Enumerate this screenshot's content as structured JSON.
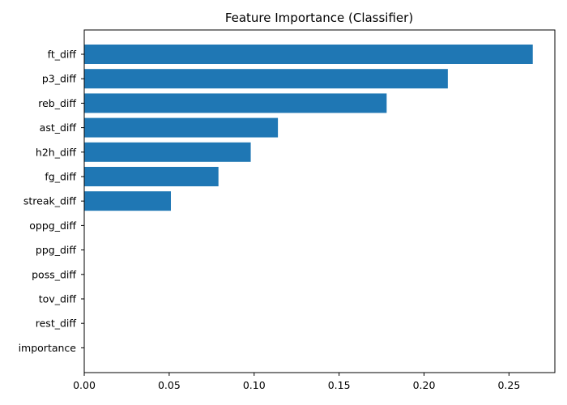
{
  "chart_data": {
    "type": "bar",
    "orientation": "horizontal",
    "title": "Feature Importance (Classifier)",
    "xlabel": "",
    "ylabel": "",
    "categories": [
      "ft_diff",
      "p3_diff",
      "reb_diff",
      "ast_diff",
      "h2h_diff",
      "fg_diff",
      "streak_diff",
      "oppg_diff",
      "ppg_diff",
      "poss_diff",
      "tov_diff",
      "rest_diff",
      "importance"
    ],
    "values": [
      0.264,
      0.214,
      0.178,
      0.114,
      0.098,
      0.079,
      0.051,
      0,
      0,
      0,
      0,
      0,
      0
    ],
    "xlim": [
      0,
      0.277
    ],
    "xticks": [
      0.0,
      0.05,
      0.1,
      0.15,
      0.2,
      0.25
    ],
    "xtick_labels": [
      "0.00",
      "0.05",
      "0.10",
      "0.15",
      "0.20",
      "0.25"
    ],
    "bar_color": "#1f77b4",
    "grid": false,
    "legend": "none"
  }
}
